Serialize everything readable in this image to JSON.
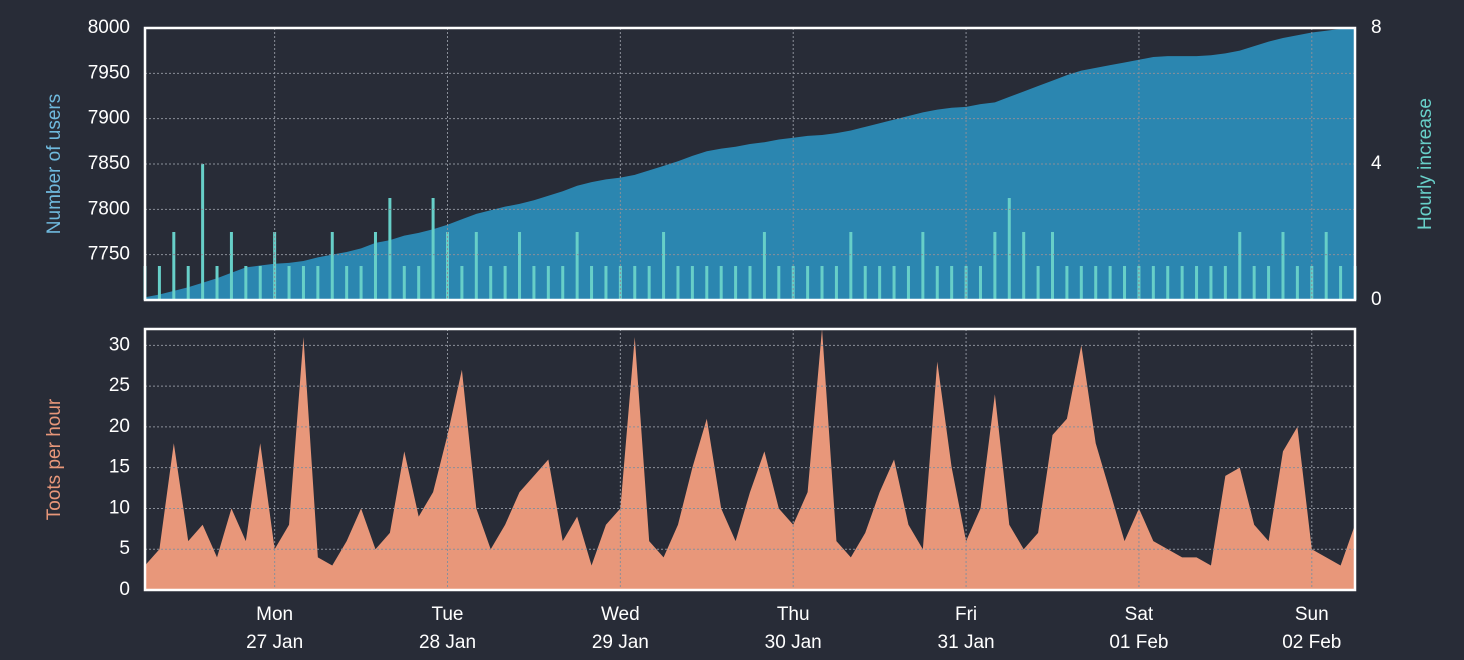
{
  "chart_data": [
    {
      "type": "area",
      "ylabel": "Number of users",
      "y2label": "Hourly increase",
      "ylim": [
        7700,
        8000
      ],
      "yticks": [
        7750,
        7800,
        7850,
        7900,
        7950,
        8000
      ],
      "y2lim": [
        0,
        8
      ],
      "y2ticks": [
        0,
        4,
        8
      ],
      "grid": true,
      "series": [
        {
          "type": "area",
          "color": "#2b86b0",
          "values": [
            7703,
            7706,
            7710,
            7714,
            7719,
            7724,
            7730,
            7736,
            7738,
            7740,
            7741,
            7743,
            7747,
            7750,
            7753,
            7757,
            7763,
            7766,
            7771,
            7774,
            7778,
            7783,
            7789,
            7795,
            7799,
            7803,
            7806,
            7810,
            7815,
            7820,
            7826,
            7830,
            7833,
            7835,
            7838,
            7843,
            7848,
            7853,
            7859,
            7864,
            7867,
            7869,
            7872,
            7874,
            7877,
            7879,
            7881,
            7882,
            7884,
            7887,
            7891,
            7895,
            7899,
            7903,
            7907,
            7910,
            7912,
            7913,
            7916,
            7918,
            7924,
            7930,
            7936,
            7942,
            7948,
            7953,
            7956,
            7959,
            7962,
            7965,
            7968,
            7969,
            7969,
            7969,
            7970,
            7972,
            7975,
            7980,
            7985,
            7989,
            7992,
            7995,
            7997,
            7999,
            8000
          ]
        },
        {
          "type": "bar",
          "axis": "y2",
          "color": "#67cfc8",
          "values": [
            1,
            1,
            2,
            1,
            4,
            1,
            2,
            1,
            1,
            2,
            1,
            1,
            1,
            2,
            1,
            1,
            2,
            3,
            1,
            1,
            3,
            2,
            1,
            2,
            1,
            1,
            2,
            1,
            1,
            1,
            2,
            1,
            1,
            1,
            1,
            1,
            2,
            1,
            1,
            1,
            1,
            1,
            1,
            2,
            1,
            1,
            1,
            1,
            1,
            2,
            1,
            1,
            1,
            1,
            2,
            1,
            1,
            1,
            1,
            2,
            3,
            2,
            1,
            2,
            1,
            1,
            1,
            1,
            1,
            1,
            1,
            1,
            1,
            1,
            1,
            1,
            2,
            1,
            1,
            2,
            1,
            1,
            2,
            1,
            1
          ]
        }
      ]
    },
    {
      "type": "area",
      "ylabel": "Toots per hour",
      "ylim": [
        0,
        32
      ],
      "yticks": [
        0,
        5,
        10,
        15,
        20,
        25,
        30
      ],
      "grid": true,
      "categories": [
        null,
        null,
        null,
        null,
        null,
        null,
        null,
        null,
        null,
        "Mon\n27 Jan",
        null,
        null,
        null,
        null,
        null,
        null,
        null,
        null,
        null,
        null,
        null,
        "Tue\n28 Jan",
        null,
        null,
        null,
        null,
        null,
        null,
        null,
        null,
        null,
        null,
        null,
        "Wed\n29 Jan",
        null,
        null,
        null,
        null,
        null,
        null,
        null,
        null,
        null,
        null,
        null,
        "Thu\n30 Jan",
        null,
        null,
        null,
        null,
        null,
        null,
        null,
        null,
        null,
        null,
        null,
        "Fri\n31 Jan",
        null,
        null,
        null,
        null,
        null,
        null,
        null,
        null,
        null,
        null,
        null,
        "Sat\n01 Feb",
        null,
        null,
        null,
        null,
        null,
        null,
        null,
        null,
        null,
        null,
        null,
        "Sun\n02 Feb",
        null,
        null,
        null
      ],
      "series": [
        {
          "type": "area",
          "color": "#e8977a",
          "values": [
            3,
            5,
            18,
            6,
            8,
            4,
            10,
            6,
            18,
            5,
            8,
            31,
            4,
            3,
            6,
            10,
            5,
            7,
            17,
            9,
            12,
            19,
            27,
            10,
            5,
            8,
            12,
            14,
            16,
            6,
            9,
            3,
            8,
            10,
            31,
            6,
            4,
            8,
            15,
            21,
            10,
            6,
            12,
            17,
            10,
            8,
            12,
            32,
            6,
            4,
            7,
            12,
            16,
            8,
            5,
            28,
            15,
            6,
            10,
            24,
            8,
            5,
            7,
            19,
            21,
            30,
            18,
            12,
            6,
            10,
            6,
            5,
            4,
            4,
            3,
            14,
            15,
            8,
            6,
            17,
            20,
            5,
            4,
            3,
            8
          ]
        }
      ]
    }
  ]
}
